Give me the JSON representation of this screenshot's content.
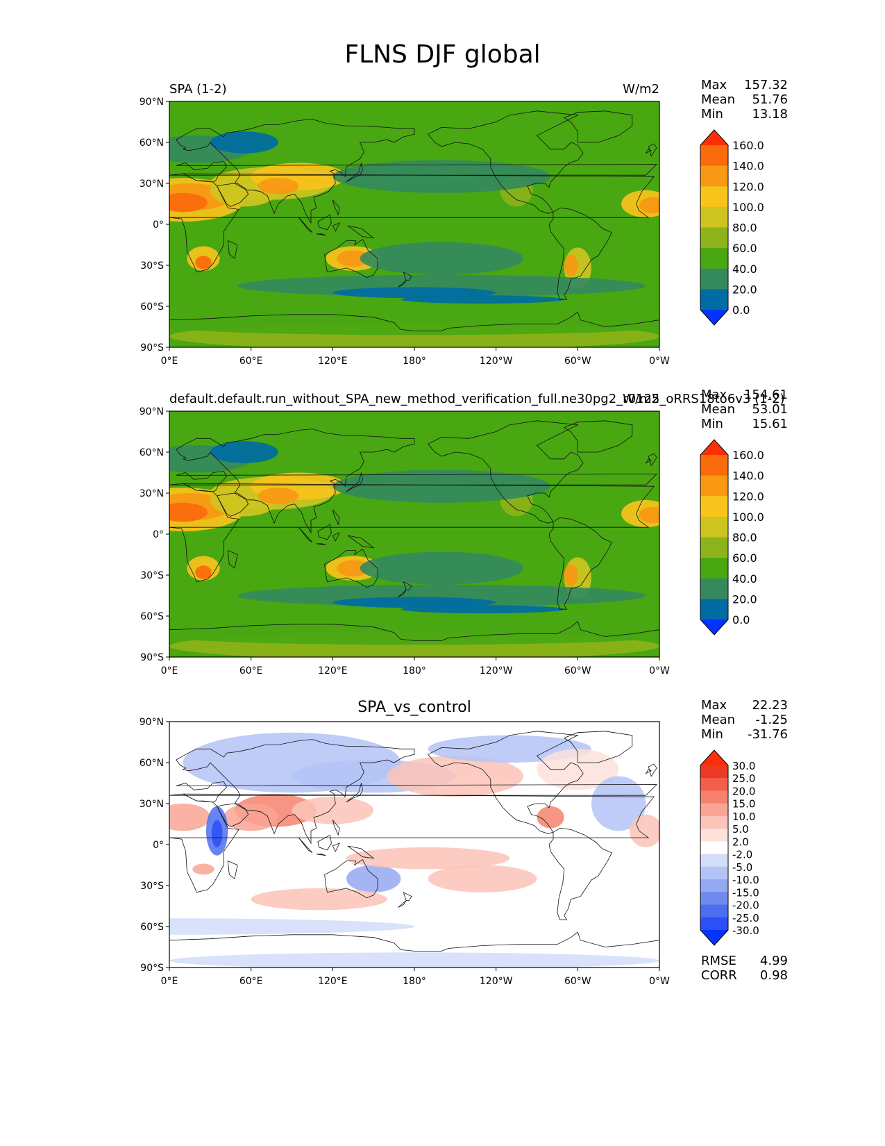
{
  "figure": {
    "title": "FLNS DJF global"
  },
  "axes": {
    "lat_ticks": [
      "90°N",
      "60°N",
      "30°N",
      "0°",
      "30°S",
      "60°S",
      "90°S"
    ],
    "lon_ticks": [
      "0°E",
      "60°E",
      "120°E",
      "180°",
      "120°W",
      "60°W",
      "0°W"
    ]
  },
  "colors": {
    "abs_levels": [
      "#0433ff",
      "#006ca3",
      "#358a5d",
      "#49a712",
      "#8cb319",
      "#cec41f",
      "#f8c31b",
      "#f89813",
      "#fa6b0b",
      "#fe2f06"
    ],
    "diff_levels": [
      "#0433ff",
      "#2b50f5",
      "#4d6ef0",
      "#6f8aee",
      "#95a8f2",
      "#b3c3f6",
      "#d2ddfa",
      "#ffffff",
      "#fde1da",
      "#fcc3b9",
      "#f9a494",
      "#f6826e",
      "#f25e4a",
      "#ed3a24",
      "#fe2f06"
    ]
  },
  "panels": [
    {
      "title_left": "SPA (1-2)",
      "title_center": "",
      "title_right": "W/m2",
      "stats": [
        {
          "label": "Max",
          "value": "157.32"
        },
        {
          "label": "Mean",
          "value": "51.76"
        },
        {
          "label": "Min",
          "value": "13.18"
        }
      ],
      "colorbar_labels": [
        "160.0",
        "140.0",
        "120.0",
        "100.0",
        "80.0",
        "60.0",
        "40.0",
        "20.0",
        "0.0"
      ],
      "footer": []
    },
    {
      "title_left": "default.default.run_without_SPA_new_method_verification_full.ne30pg2_r0125_oRRS18to6v3 (1-2)",
      "title_center": "",
      "title_right": "W/m2",
      "stats": [
        {
          "label": "Max",
          "value": "154.61"
        },
        {
          "label": "Mean",
          "value": "53.01"
        },
        {
          "label": "Min",
          "value": "15.61"
        }
      ],
      "colorbar_labels": [
        "160.0",
        "140.0",
        "120.0",
        "100.0",
        "80.0",
        "60.0",
        "40.0",
        "20.0",
        "0.0"
      ],
      "footer": []
    },
    {
      "title_left": "",
      "title_center": "SPA_vs_control",
      "title_right": "",
      "stats": [
        {
          "label": "Max",
          "value": "22.23"
        },
        {
          "label": "Mean",
          "value": "-1.25"
        },
        {
          "label": "Min",
          "value": "-31.76"
        }
      ],
      "colorbar_labels": [
        "30.0",
        "25.0",
        "20.0",
        "15.0",
        "10.0",
        "5.0",
        "2.0",
        "-2.0",
        "-5.0",
        "-10.0",
        "-15.0",
        "-20.0",
        "-25.0",
        "-30.0"
      ],
      "footer": [
        {
          "label": "RMSE",
          "value": "4.99"
        },
        {
          "label": "CORR",
          "value": "0.98"
        }
      ]
    }
  ],
  "chart_data": [
    {
      "type": "heatmap",
      "title": "SPA (1-2)",
      "units": "W/m2",
      "variable": "FLNS",
      "season": "DJF",
      "xlim": [
        0,
        360
      ],
      "ylim": [
        -90,
        90
      ],
      "levels": [
        0,
        20,
        40,
        60,
        80,
        100,
        120,
        140,
        160
      ],
      "stats": {
        "max": 157.32,
        "mean": 51.76,
        "min": 13.18
      }
    },
    {
      "type": "heatmap",
      "title": "default.default.run_without_SPA_new_method_verification_full.ne30pg2_r0125_oRRS18to6v3 (1-2)",
      "units": "W/m2",
      "variable": "FLNS",
      "season": "DJF",
      "xlim": [
        0,
        360
      ],
      "ylim": [
        -90,
        90
      ],
      "levels": [
        0,
        20,
        40,
        60,
        80,
        100,
        120,
        140,
        160
      ],
      "stats": {
        "max": 154.61,
        "mean": 53.01,
        "min": 15.61
      }
    },
    {
      "type": "heatmap",
      "title": "SPA_vs_control",
      "variable": "FLNS",
      "season": "DJF",
      "xlim": [
        0,
        360
      ],
      "ylim": [
        -90,
        90
      ],
      "levels": [
        -30,
        -25,
        -20,
        -15,
        -10,
        -5,
        -2,
        2,
        5,
        10,
        15,
        20,
        25,
        30
      ],
      "stats": {
        "max": 22.23,
        "mean": -1.25,
        "min": -31.76,
        "rmse": 4.99,
        "corr": 0.98
      }
    }
  ]
}
